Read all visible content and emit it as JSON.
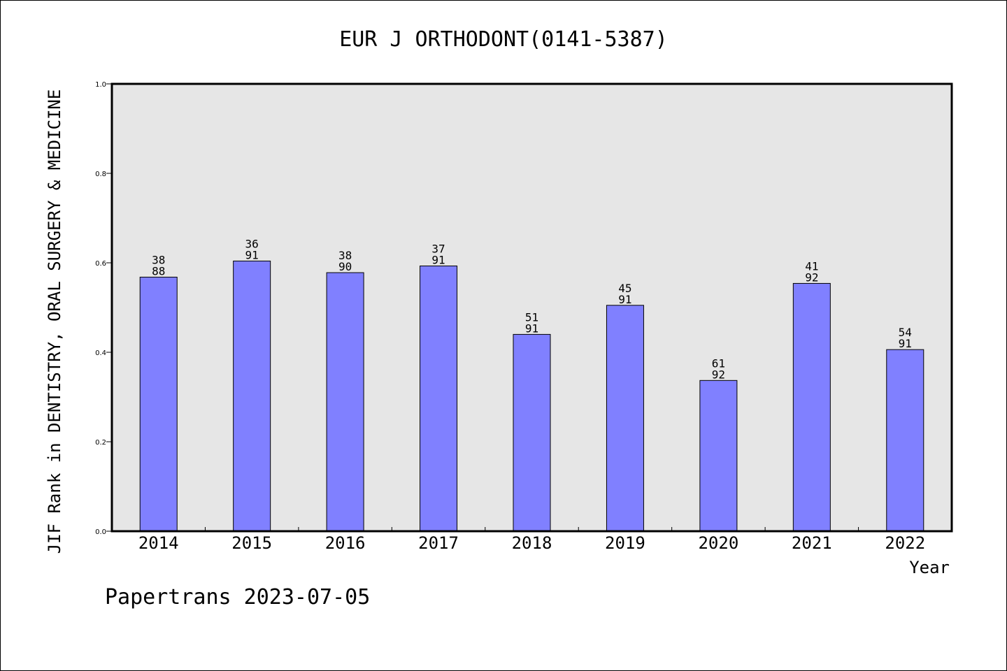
{
  "chart_data": {
    "type": "bar",
    "title": "EUR J ORTHODONT(0141-5387)",
    "ylabel": "JIF Rank in DENTISTRY, ORAL SURGERY & MEDICINE",
    "xlabel": "Year",
    "ylim": [
      0.0,
      1.0
    ],
    "yticks": [
      "0.0",
      "0.2",
      "0.4",
      "0.6",
      "0.8",
      "1.0"
    ],
    "categories": [
      "2014",
      "2015",
      "2016",
      "2017",
      "2018",
      "2019",
      "2020",
      "2021",
      "2022"
    ],
    "values": [
      0.568,
      0.604,
      0.578,
      0.593,
      0.44,
      0.505,
      0.337,
      0.554,
      0.406
    ],
    "rank_labels": [
      {
        "rank": "38",
        "total": "88"
      },
      {
        "rank": "36",
        "total": "91"
      },
      {
        "rank": "38",
        "total": "90"
      },
      {
        "rank": "37",
        "total": "91"
      },
      {
        "rank": "51",
        "total": "91"
      },
      {
        "rank": "45",
        "total": "91"
      },
      {
        "rank": "61",
        "total": "92"
      },
      {
        "rank": "41",
        "total": "92"
      },
      {
        "rank": "54",
        "total": "91"
      }
    ],
    "colors": {
      "bar": "#8080ff",
      "plot_background": "#e6e6e6"
    },
    "grid": false
  },
  "footer": "Papertrans 2023-07-05"
}
